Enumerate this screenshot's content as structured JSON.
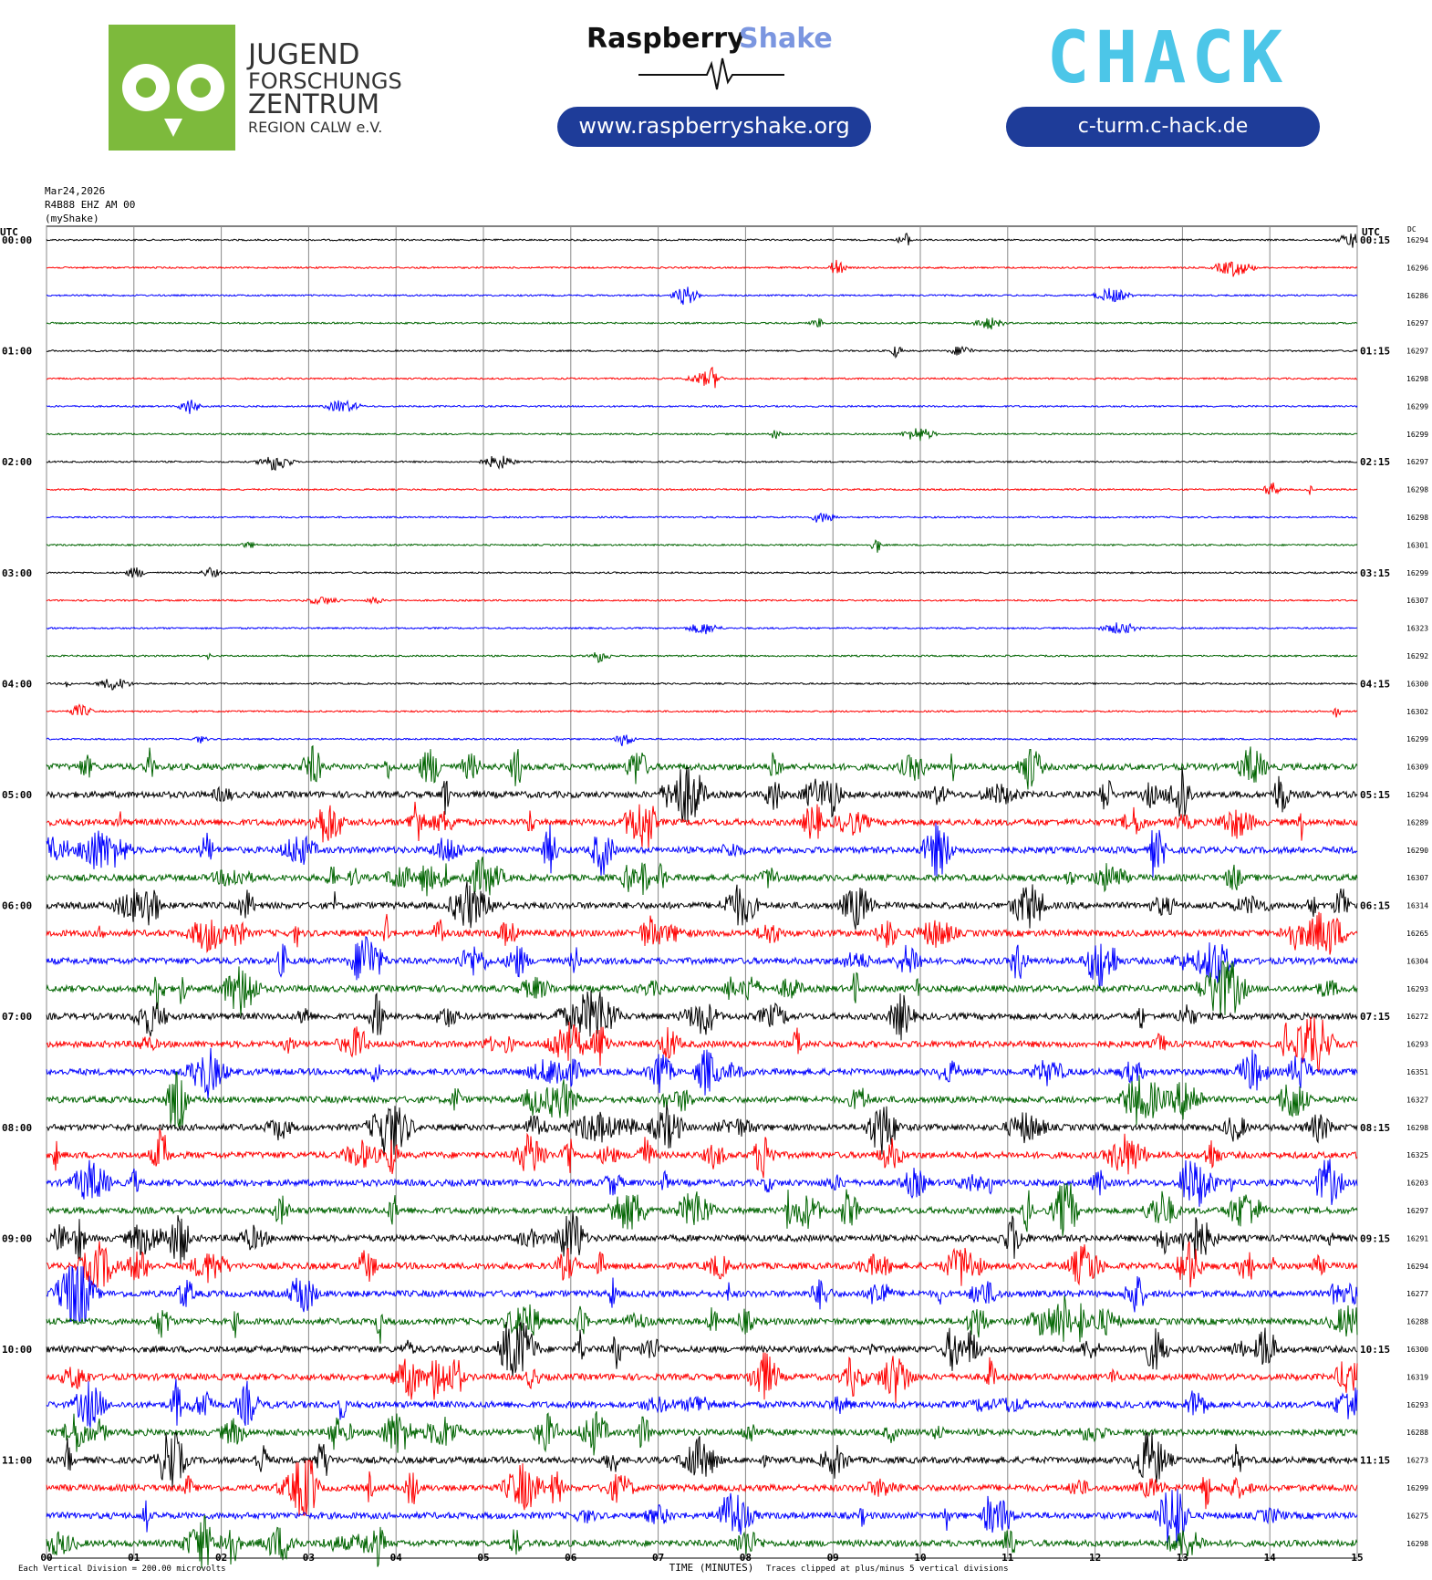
{
  "header": {
    "jfz": [
      "JUGEND",
      "FORSCHUNGS",
      "ZENTRUM",
      "REGION CALW e.V."
    ],
    "rs_name": "Raspberry",
    "rs_name2": "Shake",
    "rs_url": "www.raspberryshake.org",
    "chack": "CHACK",
    "chack_url": "c-turm.c-hack.de"
  },
  "chart_data": {
    "type": "helicorder",
    "date": "Mar24,2026",
    "station": "R4B88 EHZ AM 00",
    "source": "(myShake)",
    "left_axis_title": "UTC",
    "right_axis_title": "UTC",
    "dc_title": "DC",
    "left_labels": [
      "00:00",
      "01:00",
      "02:00",
      "03:00",
      "04:00",
      "05:00",
      "06:00",
      "07:00",
      "08:00",
      "09:00",
      "10:00",
      "11:00"
    ],
    "right_labels": [
      "00:15",
      "01:15",
      "02:15",
      "03:15",
      "04:15",
      "05:15",
      "06:15",
      "07:15",
      "08:15",
      "09:15",
      "10:15",
      "11:15"
    ],
    "dc_values": [
      16294,
      16296,
      16286,
      16297,
      16297,
      16298,
      16299,
      16299,
      16297,
      16298,
      16298,
      16301,
      16299,
      16307,
      16323,
      16292,
      16300,
      16302,
      16299,
      16309,
      16294,
      16289,
      16290,
      16307,
      16314,
      16265,
      16304,
      16293,
      16272,
      16293,
      16351,
      16327,
      16298,
      16325,
      16203,
      16297,
      16291,
      16294,
      16277,
      16288,
      16300,
      16319,
      16293,
      16288,
      16273,
      16299,
      16275,
      16298
    ],
    "trace_colors": [
      "#000000",
      "#ff0000",
      "#0000ff",
      "#006400"
    ],
    "xlim": [
      0,
      15
    ],
    "xticks": [
      {
        "value": 0,
        "label": "00"
      },
      {
        "value": 1,
        "label": "01"
      },
      {
        "value": 2,
        "label": "02"
      },
      {
        "value": 3,
        "label": "03"
      },
      {
        "value": 4,
        "label": "04"
      },
      {
        "value": 5,
        "label": "05"
      },
      {
        "value": 6,
        "label": "06"
      },
      {
        "value": 7,
        "label": "07"
      },
      {
        "value": 8,
        "label": "08"
      },
      {
        "value": 9,
        "label": "09"
      },
      {
        "value": 10,
        "label": "10"
      },
      {
        "value": 11,
        "label": "11"
      },
      {
        "value": 12,
        "label": "12"
      },
      {
        "value": 13,
        "label": "13"
      },
      {
        "value": 14,
        "label": "14"
      },
      {
        "value": 15,
        "label": "15"
      }
    ],
    "xlabel": "TIME (MINUTES)",
    "scale_note": "Each Vertical Division = 200.00 microvolts",
    "clip_note": "Traces clipped at plus/minus 5 vertical divisions"
  }
}
